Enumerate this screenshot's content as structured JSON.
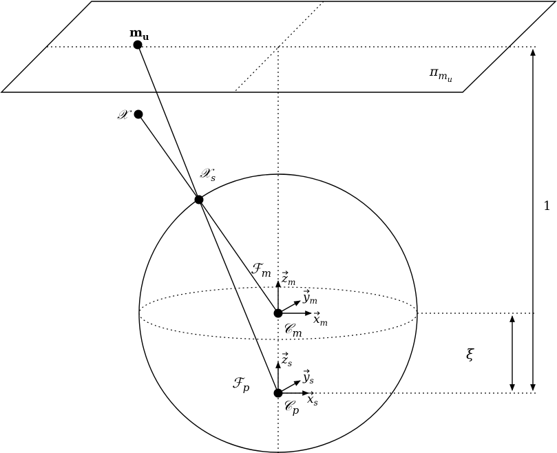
{
  "labels": {
    "image_point": "m",
    "image_point_sub": "u",
    "plane": "π",
    "plane_sub": "m",
    "plane_subsub": "u",
    "world_point": "𝒳",
    "sphere_point": "𝒳",
    "sphere_point_sub": "s",
    "frame_m": "ℱ",
    "frame_m_sub": "m",
    "frame_p": "ℱ",
    "frame_p_sub": "p",
    "center_m": "𝒞",
    "center_m_sub": "m",
    "center_p": "𝒞",
    "center_p_sub": "p",
    "axis_zm": "z",
    "axis_zm_sub": "m",
    "axis_ym": "y",
    "axis_ym_sub": "m",
    "axis_xm": "x",
    "axis_xm_sub": "m",
    "axis_zs": "z",
    "axis_zs_sub": "s",
    "axis_ys": "y",
    "axis_ys_sub": "s",
    "axis_xs": "x",
    "axis_xs_sub": "s",
    "distance_one": "1",
    "distance_xi": "ξ"
  }
}
